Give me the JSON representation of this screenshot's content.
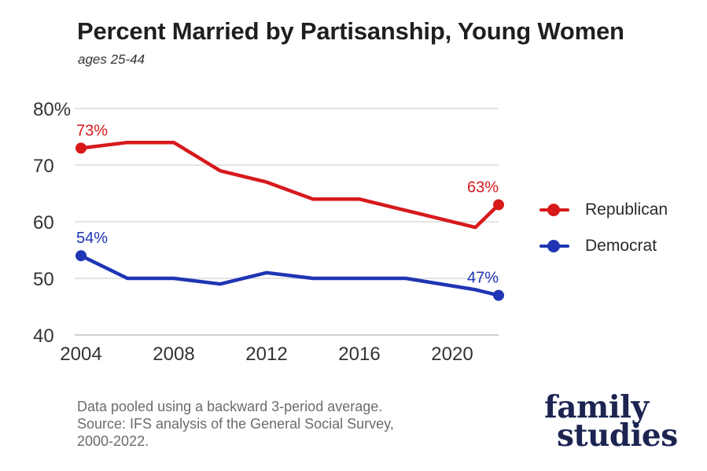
{
  "chart_data": {
    "type": "line",
    "title": "Percent Married by Partisanship, Young Women",
    "subtitle": "ages 25-44",
    "xlabel": "",
    "ylabel": "",
    "xlim": [
      2004,
      2022
    ],
    "ylim": [
      40,
      80
    ],
    "x_ticks": [
      "2004",
      "2008",
      "2012",
      "2016",
      "2020"
    ],
    "y_ticks": [
      "40",
      "50",
      "60",
      "70",
      "80%"
    ],
    "grid": true,
    "legend_position": "right",
    "series": [
      {
        "name": "Republican",
        "color": "#d7191c",
        "x": [
          2004,
          2006,
          2008,
          2010,
          2012,
          2014,
          2016,
          2018,
          2021,
          2022
        ],
        "values": [
          73,
          74,
          74,
          69,
          67,
          64,
          64,
          62,
          59,
          63
        ],
        "labels": [
          {
            "index": 0,
            "text": "73%"
          },
          {
            "index": 9,
            "text": "63%"
          }
        ]
      },
      {
        "name": "Democrat",
        "color": "#1f35b4",
        "x": [
          2004,
          2006,
          2008,
          2010,
          2012,
          2014,
          2016,
          2018,
          2021,
          2022
        ],
        "values": [
          54,
          50,
          50,
          49,
          51,
          50,
          50,
          50,
          48,
          47
        ],
        "labels": [
          {
            "index": 0,
            "text": "54%"
          },
          {
            "index": 9,
            "text": "47%"
          }
        ]
      }
    ],
    "annotations": [
      "Data pooled using a backward 3-period average.",
      "Source: IFS analysis of the General Social Survey,",
      "2000-2022."
    ]
  },
  "logo": {
    "line1": "family",
    "line2": "studies"
  }
}
